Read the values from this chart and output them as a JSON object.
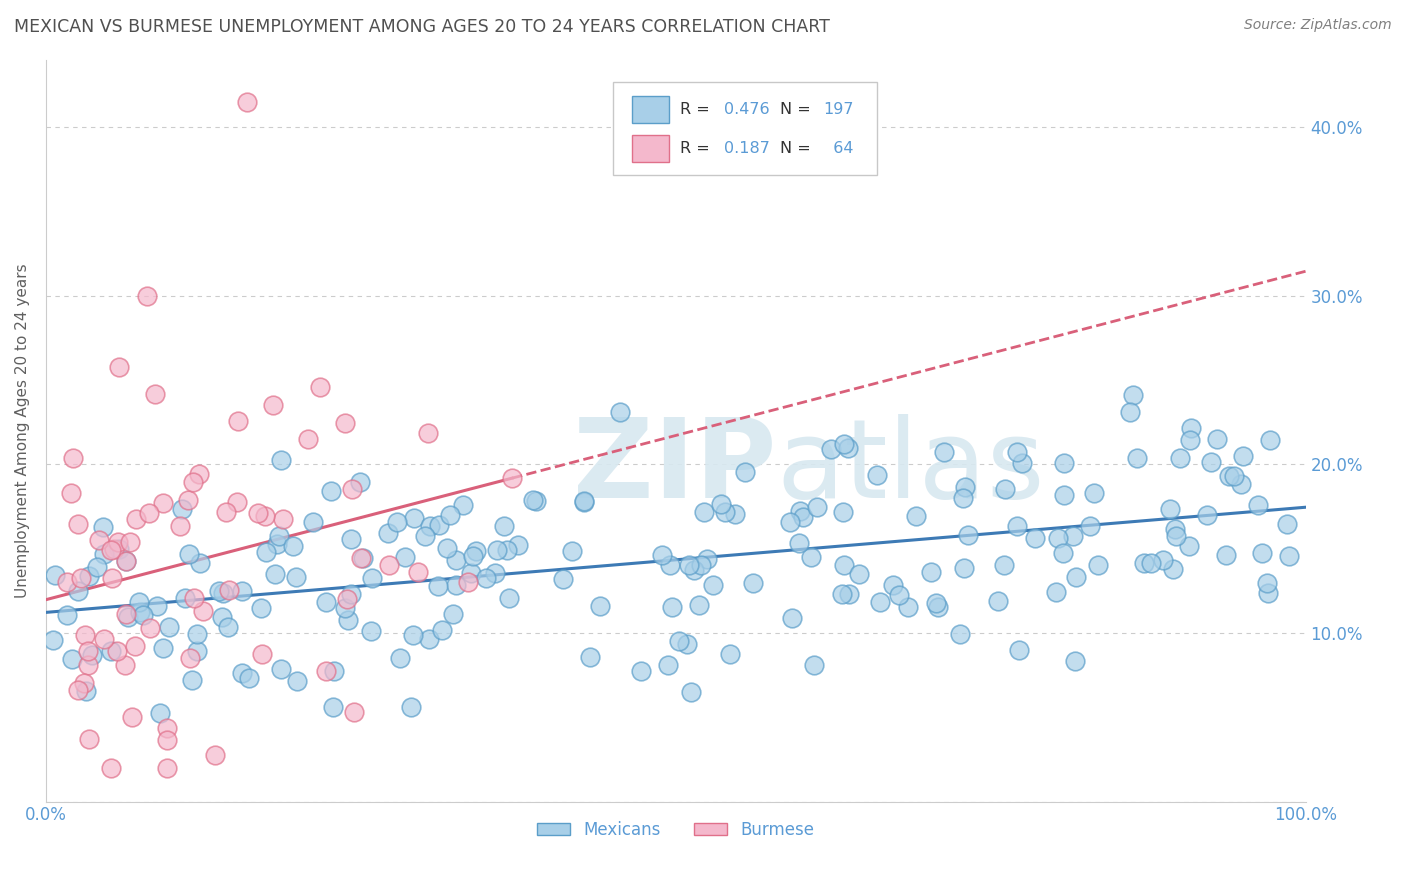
{
  "title": "MEXICAN VS BURMESE UNEMPLOYMENT AMONG AGES 20 TO 24 YEARS CORRELATION CHART",
  "source": "Source: ZipAtlas.com",
  "ylabel": "Unemployment Among Ages 20 to 24 years",
  "xlim": [
    0,
    1.0
  ],
  "ylim": [
    0,
    0.44
  ],
  "xticks": [
    0.0,
    0.1,
    0.2,
    0.3,
    0.4,
    0.5,
    0.6,
    0.7,
    0.8,
    0.9,
    1.0
  ],
  "xticklabels": [
    "0.0%",
    "",
    "",
    "",
    "",
    "",
    "",
    "",
    "",
    "",
    "100.0%"
  ],
  "yticks": [
    0.0,
    0.1,
    0.2,
    0.3,
    0.4
  ],
  "yticklabels_right": [
    "",
    "10.0%",
    "20.0%",
    "30.0%",
    "40.0%"
  ],
  "mexican_color": "#a8cfe8",
  "burmese_color": "#f4b8cc",
  "mexican_edge_color": "#5b9ec9",
  "burmese_edge_color": "#e0708a",
  "mexican_line_color": "#3d7ab5",
  "burmese_line_color": "#d9607a",
  "mexican_R": 0.476,
  "mexican_N": 197,
  "burmese_R": 0.187,
  "burmese_N": 64,
  "watermark_zip": "ZIP",
  "watermark_atlas": "atlas",
  "legend_mexicans": "Mexicans",
  "legend_burmese": "Burmese",
  "background_color": "#ffffff",
  "grid_color": "#cccccc",
  "title_color": "#505050",
  "axis_label_color": "#606060",
  "tick_color": "#5b9bd5",
  "legend_text_color": "#5b9bd5",
  "legend_label_color": "#333333",
  "mexican_seed": 42,
  "burmese_seed": 99
}
